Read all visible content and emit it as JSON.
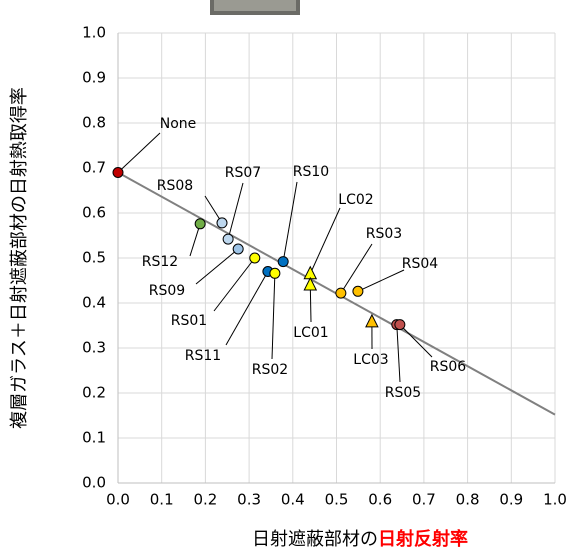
{
  "chart_data": {
    "type": "scatter",
    "x_label": "日射遮蔽部材の",
    "x_label_highlight": "日射反射率",
    "y_label": "複層ガラス＋日射遮蔽部材の日射熱取得率",
    "xlim": [
      0,
      1
    ],
    "ylim": [
      0,
      1
    ],
    "xticks": [
      {
        "value": 0,
        "label": "0.0"
      },
      0.1,
      0.2,
      0.3,
      0.4,
      0.5,
      0.6,
      0.7,
      0.8,
      0.9,
      {
        "value": 1,
        "label": "1.0"
      }
    ],
    "yticks": [
      {
        "value": 0,
        "label": "0.0"
      },
      0.1,
      0.2,
      0.3,
      0.4,
      0.5,
      0.6,
      0.7,
      0.8,
      0.9,
      {
        "value": 1,
        "label": "1.0"
      }
    ],
    "grid": true,
    "trend_line": {
      "color": "#808080",
      "x": [
        0,
        1
      ],
      "y": [
        0.69,
        0.152
      ]
    },
    "points": [
      {
        "name": "None",
        "x": 0,
        "y": 0.69,
        "color": "#c00000",
        "marker": "circle"
      },
      {
        "name": "RS08",
        "x": 0.238,
        "y": 0.578,
        "color": "#bdd7ee",
        "marker": "circle"
      },
      {
        "name": "RS07",
        "x": 0.252,
        "y": 0.542,
        "color": "#bdd7ee",
        "marker": "circle"
      },
      {
        "name": "RS12",
        "x": 0.188,
        "y": 0.576,
        "color": "#70ad47",
        "marker": "circle"
      },
      {
        "name": "RS09",
        "x": 0.275,
        "y": 0.52,
        "color": "#9dc3e6",
        "marker": "circle"
      },
      {
        "name": "RS01",
        "x": 0.313,
        "y": 0.5,
        "color": "#ffff00",
        "marker": "circle"
      },
      {
        "name": "RS11",
        "x": 0.343,
        "y": 0.47,
        "color": "#0070c0",
        "marker": "circle"
      },
      {
        "name": "RS02",
        "x": 0.359,
        "y": 0.466,
        "color": "#ffff00",
        "marker": "circle"
      },
      {
        "name": "RS10",
        "x": 0.378,
        "y": 0.492,
        "color": "#0070c0",
        "marker": "circle"
      },
      {
        "name": "LC02",
        "x": 0.44,
        "y": 0.465,
        "color": "#ffff00",
        "marker": "triangle"
      },
      {
        "name": "LC01",
        "x": 0.44,
        "y": 0.44,
        "color": "#ffff00",
        "marker": "triangle"
      },
      {
        "name": "RS03",
        "x": 0.51,
        "y": 0.422,
        "color": "#ffc000",
        "marker": "circle"
      },
      {
        "name": "RS04",
        "x": 0.549,
        "y": 0.426,
        "color": "#ffc000",
        "marker": "circle"
      },
      {
        "name": "LC03",
        "x": 0.581,
        "y": 0.358,
        "color": "#ffc000",
        "marker": "triangle"
      },
      {
        "name": "RS05",
        "x": 0.638,
        "y": 0.352,
        "color": "#c0504d",
        "marker": "circle"
      },
      {
        "name": "RS06",
        "x": 0.645,
        "y": 0.352,
        "color": "#c0504d",
        "marker": "circle"
      }
    ]
  }
}
